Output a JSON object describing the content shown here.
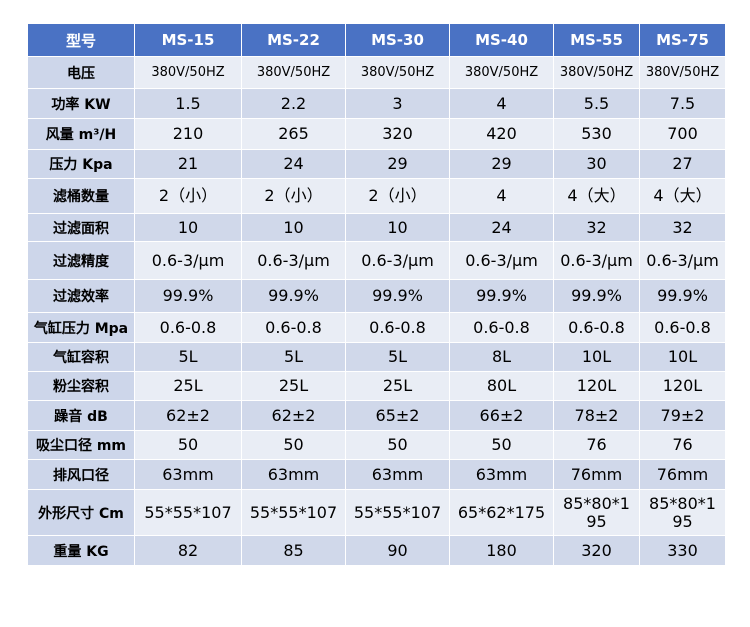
{
  "header": {
    "label": "型号",
    "models": [
      "MS-15",
      "MS-22",
      "MS-30",
      "MS-40",
      "MS-55",
      "MS-75"
    ]
  },
  "rows": [
    {
      "label": "电压",
      "values": [
        "380V/50HZ",
        "380V/50HZ",
        "380V/50HZ",
        "380V/50HZ",
        "380V/50HZ",
        "380V/50HZ"
      ]
    },
    {
      "label": "功率 KW",
      "values": [
        "1.5",
        "2.2",
        "3",
        "4",
        "5.5",
        "7.5"
      ]
    },
    {
      "label": "风量 m³/H",
      "values": [
        "210",
        "265",
        "320",
        "420",
        "530",
        "700"
      ]
    },
    {
      "label": "压力 Kpa",
      "values": [
        "21",
        "24",
        "29",
        "29",
        "30",
        "27"
      ]
    },
    {
      "label": "滤桶数量",
      "values": [
        "2（小）",
        "2（小）",
        "2（小）",
        "4",
        "4（大）",
        "4（大）"
      ]
    },
    {
      "label": "过滤面积",
      "values": [
        "10",
        "10",
        "10",
        "24",
        "32",
        "32"
      ]
    },
    {
      "label": "过滤精度",
      "values": [
        "0.6-3/μm",
        "0.6-3/μm",
        "0.6-3/μm",
        "0.6-3/μm",
        "0.6-3/μm",
        "0.6-3/μm"
      ]
    },
    {
      "label": "过滤效率",
      "values": [
        "99.9%",
        "99.9%",
        "99.9%",
        "99.9%",
        "99.9%",
        "99.9%"
      ]
    },
    {
      "label": "气缸压力 Mpa",
      "values": [
        "0.6-0.8",
        "0.6-0.8",
        "0.6-0.8",
        "0.6-0.8",
        "0.6-0.8",
        "0.6-0.8"
      ]
    },
    {
      "label": "气缸容积",
      "values": [
        "5L",
        "5L",
        "5L",
        "8L",
        "10L",
        "10L"
      ]
    },
    {
      "label": "粉尘容积",
      "values": [
        "25L",
        "25L",
        "25L",
        "80L",
        "120L",
        "120L"
      ]
    },
    {
      "label": "躁音 dB",
      "values": [
        "62±2",
        "62±2",
        "65±2",
        "66±2",
        "78±2",
        "79±2"
      ]
    },
    {
      "label": "吸尘口径 mm",
      "values": [
        "50",
        "50",
        "50",
        "50",
        "76",
        "76"
      ]
    },
    {
      "label": "排风口径",
      "values": [
        "63mm",
        "63mm",
        "63mm",
        "63mm",
        "76mm",
        "76mm"
      ]
    },
    {
      "label": "外形尺寸 Cm",
      "values": [
        "55*55*107",
        "55*55*107",
        "55*55*107",
        "65*62*175",
        "85*80*195",
        "85*80*195"
      ]
    },
    {
      "label": "重量 KG",
      "values": [
        "82",
        "85",
        "90",
        "180",
        "320",
        "330"
      ]
    }
  ],
  "colors": {
    "header_bg": "#4a72c4",
    "label_bg": "#cdd6ea",
    "row_light": "#e9edf5",
    "row_dark": "#d0d8ea"
  }
}
